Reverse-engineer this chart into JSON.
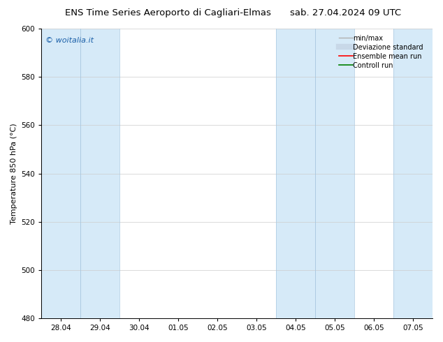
{
  "title_left": "ENS Time Series Aeroporto di Cagliari-Elmas",
  "title_right": "sab. 27.04.2024 09 UTC",
  "ylabel": "Temperature 850 hPa (°C)",
  "ylim": [
    480,
    600
  ],
  "yticks": [
    480,
    500,
    520,
    540,
    560,
    580,
    600
  ],
  "xtick_labels": [
    "28.04",
    "29.04",
    "30.04",
    "01.05",
    "02.05",
    "03.05",
    "04.05",
    "05.05",
    "06.05",
    "07.05"
  ],
  "xtick_positions": [
    0,
    1,
    2,
    3,
    4,
    5,
    6,
    7,
    8,
    9
  ],
  "xlim": [
    -0.5,
    9.5
  ],
  "watermark": "© woitalia.it",
  "band_color": "#d6eaf8",
  "shade_ranges": [
    [
      -0.5,
      0.5
    ],
    [
      0.5,
      1.5
    ],
    [
      5.5,
      6.5
    ],
    [
      6.5,
      7.5
    ],
    [
      8.5,
      9.5
    ]
  ],
  "legend_items": [
    {
      "label": "min/max",
      "color": "#b0b0b0",
      "lw": 1.0,
      "ls": "-",
      "type": "line"
    },
    {
      "label": "Deviazione standard",
      "color": "#c8d8e8",
      "lw": 6,
      "ls": "-",
      "type": "line"
    },
    {
      "label": "Ensemble mean run",
      "color": "red",
      "lw": 1.2,
      "ls": "-",
      "type": "line"
    },
    {
      "label": "Controll run",
      "color": "green",
      "lw": 1.2,
      "ls": "-",
      "type": "line"
    }
  ],
  "background_color": "#ffffff",
  "plot_bg_color": "#ffffff",
  "title_fontsize": 9.5,
  "ylabel_fontsize": 8,
  "tick_fontsize": 7.5,
  "watermark_color": "#1a5fa8",
  "watermark_fontsize": 8,
  "legend_fontsize": 7
}
